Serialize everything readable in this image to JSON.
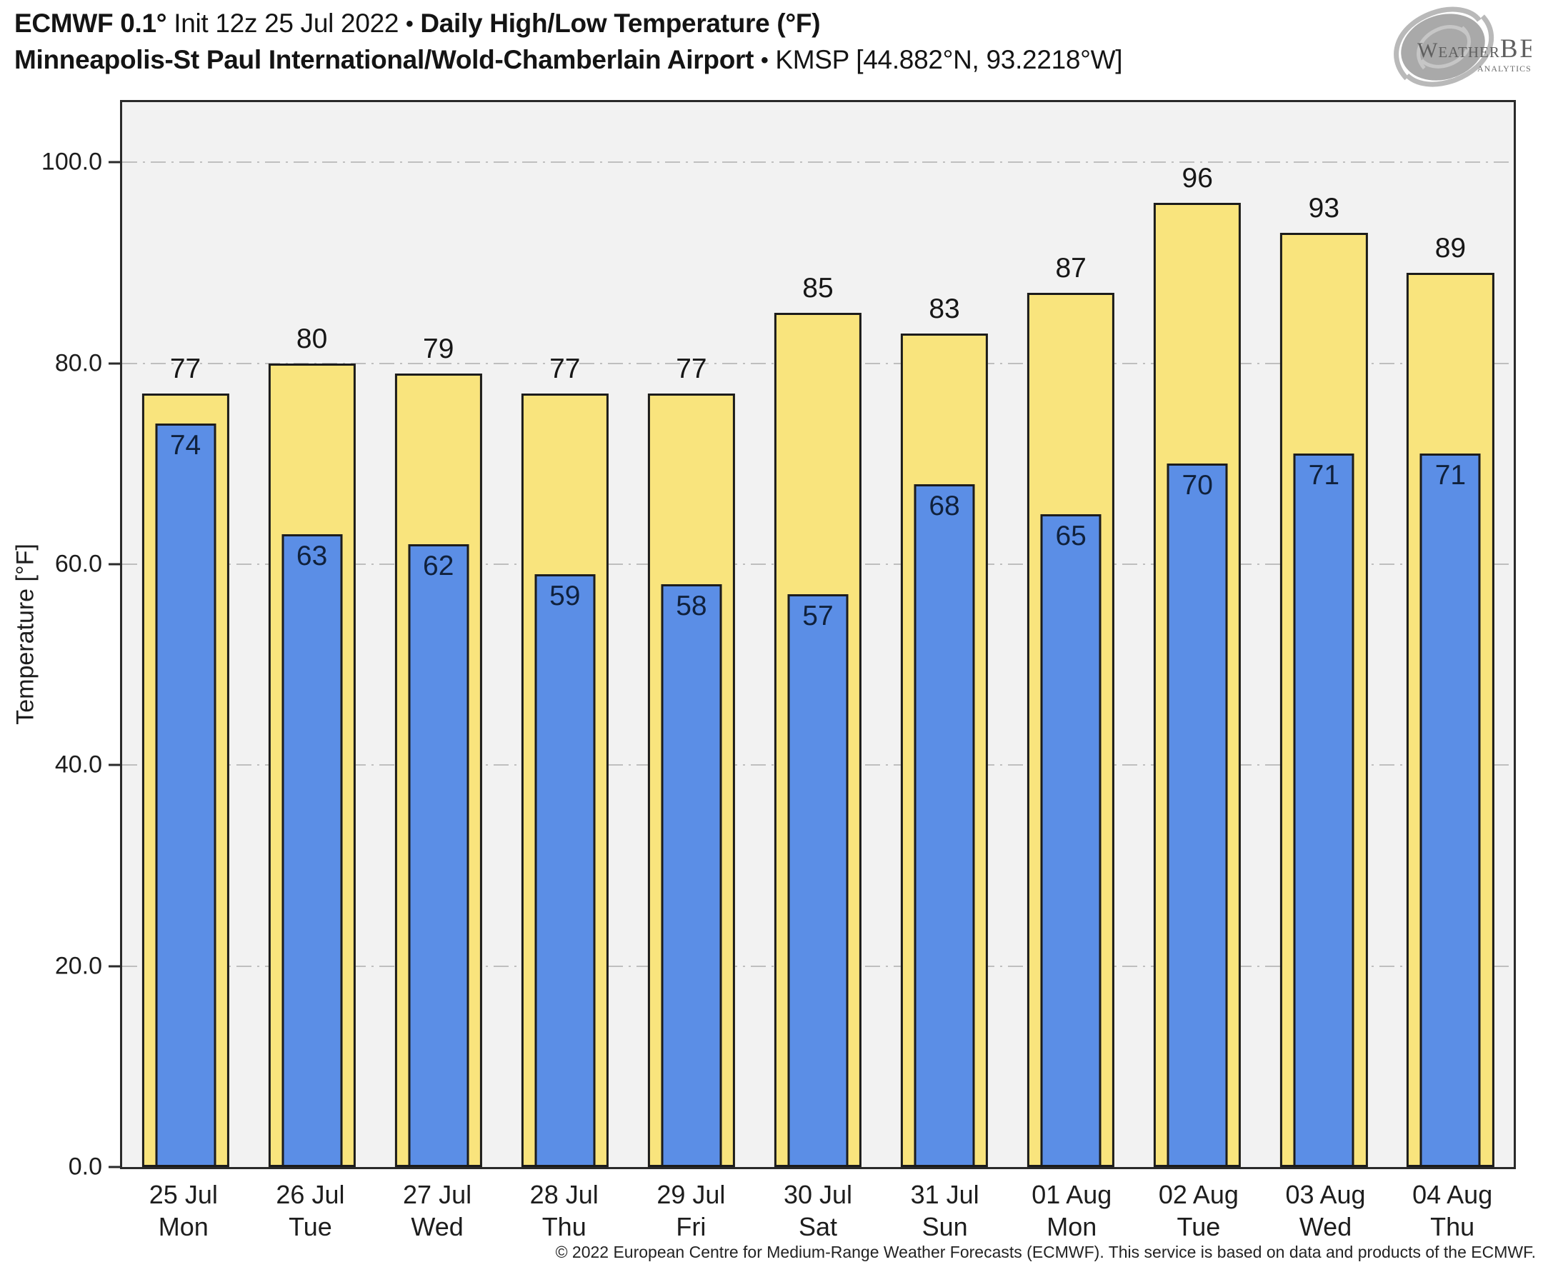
{
  "header": {
    "title_model": "ECMWF 0.1°",
    "title_init": "Init 12z 25 Jul 2022",
    "bullet": "•",
    "title_product": "Daily High/Low Temperature (°F)",
    "station_name": "Minneapolis-St Paul International/Wold-Chamberlain Airport",
    "station_id": "KMSP [44.882°N, 93.2218°W]"
  },
  "logo": {
    "weather": "Weather",
    "bell": "BELL",
    "analytics": "Analytics LLC"
  },
  "chart_data": {
    "type": "bar",
    "title": "ECMWF 0.1° Init 12z 25 Jul 2022 • Daily High/Low Temperature (°F) — Minneapolis-St Paul International/Wold-Chamberlain Airport • KMSP [44.882°N, 93.2218°W]",
    "xlabel": "",
    "ylabel": "Temperature [°F]",
    "ylim": [
      0,
      106
    ],
    "yticks": [
      0,
      20,
      40,
      60,
      80,
      100
    ],
    "ytick_labels": [
      "0.0",
      "20.0",
      "40.0",
      "60.0",
      "80.0",
      "100.0"
    ],
    "grid": "horizontal dash-dot, color #bfbfbf, behind bars",
    "legend_position": "none",
    "plot_background": "#f2f2f2",
    "categories": [
      {
        "date": "25 Jul",
        "day": "Mon"
      },
      {
        "date": "26 Jul",
        "day": "Tue"
      },
      {
        "date": "27 Jul",
        "day": "Wed"
      },
      {
        "date": "28 Jul",
        "day": "Thu"
      },
      {
        "date": "29 Jul",
        "day": "Fri"
      },
      {
        "date": "30 Jul",
        "day": "Sat"
      },
      {
        "date": "31 Jul",
        "day": "Sun"
      },
      {
        "date": "01 Aug",
        "day": "Mon"
      },
      {
        "date": "02 Aug",
        "day": "Tue"
      },
      {
        "date": "03 Aug",
        "day": "Wed"
      },
      {
        "date": "04 Aug",
        "day": "Thu"
      }
    ],
    "series": [
      {
        "name": "Daily High",
        "color": "#f9e47d",
        "values": [
          77,
          80,
          79,
          77,
          77,
          85,
          83,
          87,
          96,
          93,
          89
        ]
      },
      {
        "name": "Daily Low",
        "color": "#5b8ee6",
        "values": [
          74,
          63,
          62,
          59,
          58,
          57,
          68,
          65,
          70,
          71,
          71
        ]
      }
    ]
  },
  "footer": {
    "copyright": "© 2022 European Centre for Medium-Range Weather Forecasts (ECMWF). This service is based on data and products of the ECMWF."
  }
}
